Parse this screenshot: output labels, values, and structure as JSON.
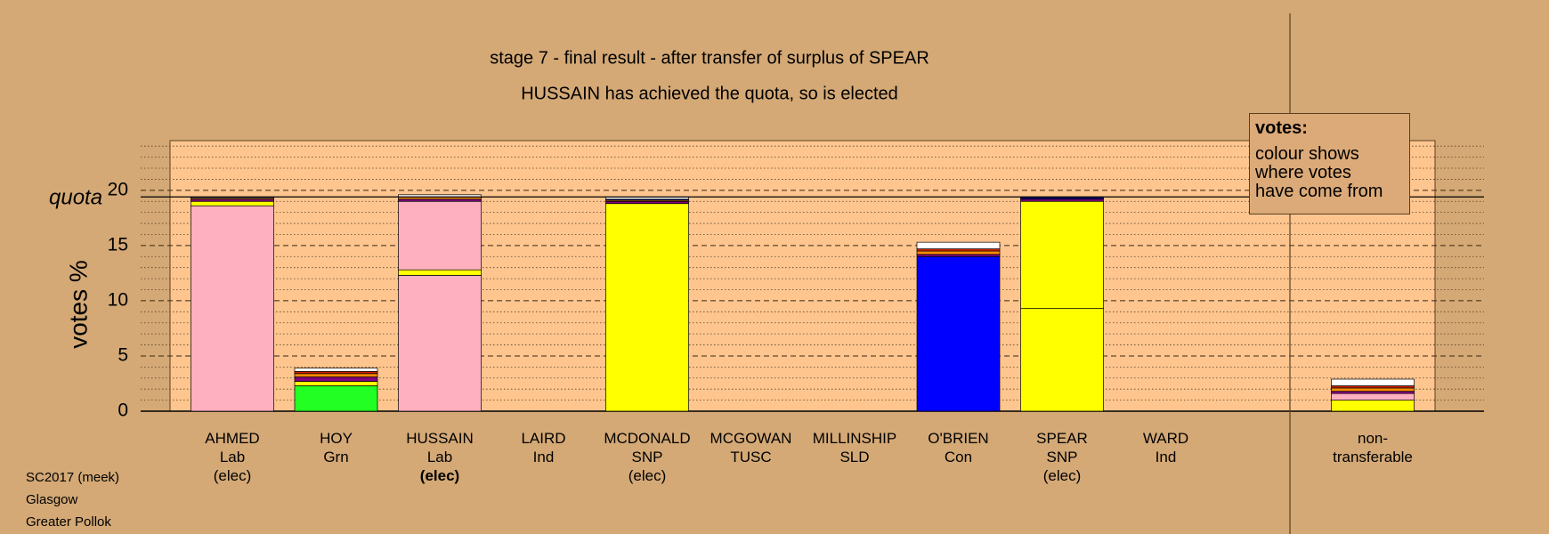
{
  "chart_data": {
    "type": "bar",
    "stacked": true,
    "title": "stage 7 - final result - after transfer of surplus of SPEAR",
    "subtitle": "HUSSAIN has achieved the quota, so is elected",
    "ylabel": "votes %",
    "categories": [
      "AHMED",
      "HOY",
      "HUSSAIN",
      "LAIRD",
      "MCDONALD",
      "MCGOWAN",
      "MILLINSHIP",
      "O'BRIEN",
      "SPEAR",
      "WARD",
      "non-transferable"
    ],
    "parties": [
      "Lab",
      "Grn",
      "Lab",
      "Ind",
      "SNP",
      "TUSC",
      "SLD",
      "Con",
      "SNP",
      "Ind",
      null
    ],
    "status": [
      "(elec)",
      null,
      "(elec)",
      null,
      "(elec)",
      null,
      null,
      null,
      "(elec)",
      null,
      null
    ],
    "status_bold": [
      false,
      false,
      true,
      false,
      false,
      false,
      false,
      false,
      false,
      false,
      false
    ],
    "divider_before_last": true,
    "series": [
      {
        "color": "#ffb0c0",
        "values": [
          18.6,
          0,
          12.3,
          0,
          0,
          0,
          0,
          0,
          0,
          0,
          0
        ]
      },
      {
        "color": "#22ff22",
        "values": [
          0,
          2.3,
          0,
          0,
          0,
          0,
          0,
          0,
          0,
          0,
          0
        ]
      },
      {
        "color": "#0000ff",
        "values": [
          0,
          0,
          0,
          0,
          0,
          0,
          0,
          14.0,
          0,
          0,
          0
        ]
      },
      {
        "color": "#ffff00",
        "values": [
          0.4,
          0.4,
          0.5,
          0,
          18.8,
          0,
          0,
          0,
          9.3,
          0,
          1.0
        ]
      },
      {
        "color": "#ffb0c0",
        "values": [
          0,
          0,
          6.2,
          0,
          0,
          0,
          0,
          0,
          0,
          0,
          0.6
        ]
      },
      {
        "color": "#ffff00",
        "values": [
          0,
          0,
          0,
          0,
          0,
          0,
          0,
          0,
          9.7,
          0,
          0
        ]
      },
      {
        "color": "#800080",
        "values": [
          0.2,
          0.4,
          0.2,
          0,
          0.2,
          0,
          0,
          0.2,
          0.2,
          0,
          0.2
        ]
      },
      {
        "color": "#ff8c00",
        "values": [
          0.1,
          0.3,
          0.2,
          0,
          0.1,
          0,
          0,
          0.3,
          0,
          0,
          0.3
        ]
      },
      {
        "color": "#cc2200",
        "values": [
          0,
          0.2,
          0,
          0,
          0,
          0,
          0,
          0.2,
          0,
          0,
          0.2
        ]
      },
      {
        "color": "#000080",
        "values": [
          0,
          0,
          0,
          0,
          0.1,
          0,
          0,
          0,
          0.2,
          0,
          0
        ]
      },
      {
        "color": "#ffffff",
        "values": [
          0.1,
          0.3,
          0.2,
          0,
          0.2,
          0,
          0,
          0.6,
          0,
          0,
          0.6
        ]
      }
    ],
    "quota": 19.4,
    "quota_label": "quota",
    "ylim": [
      0,
      24.5
    ],
    "yticks": [
      0,
      5,
      10,
      15,
      20
    ],
    "minor_yticks": [
      1,
      2,
      3,
      4,
      6,
      7,
      8,
      9,
      11,
      12,
      13,
      14,
      16,
      17,
      18,
      19,
      21,
      22,
      23,
      24
    ],
    "grid": true,
    "note_title": "votes:",
    "note_lines": [
      "colour shows",
      "where votes",
      "have come from"
    ],
    "footer": [
      "SC2017 (meek)",
      "Glasgow",
      "Greater Pollok"
    ]
  }
}
